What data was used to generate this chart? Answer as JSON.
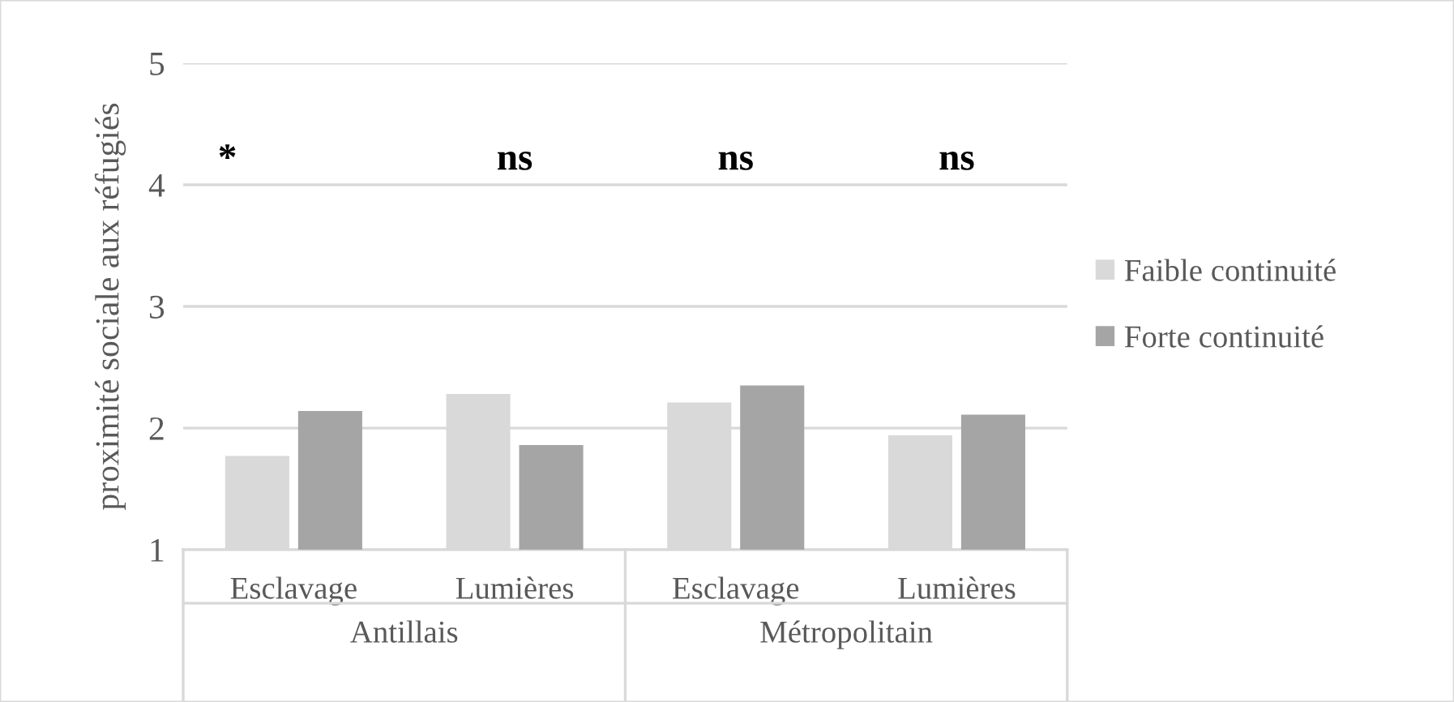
{
  "chart_data": {
    "type": "bar",
    "ylabel": "proximité sociale aux réfugiés",
    "categories": [
      "Esclavage",
      "Lumières",
      "Esclavage",
      "Lumières"
    ],
    "series": [
      {
        "name": "Faible continuité",
        "color": "#d9d9d9",
        "values": [
          1.77,
          2.28,
          2.21,
          1.94
        ]
      },
      {
        "name": "Forte continuité",
        "color": "#a5a5a5",
        "values": [
          2.14,
          1.86,
          2.35,
          2.11
        ]
      }
    ],
    "annotations": [
      "*",
      "ns",
      "ns",
      "ns",
      "Antillais",
      "Métropolitain"
    ],
    "ylim": [
      1,
      5
    ],
    "yticks": [
      1,
      2,
      3,
      4,
      5
    ],
    "grid": "y",
    "legend": "right"
  }
}
